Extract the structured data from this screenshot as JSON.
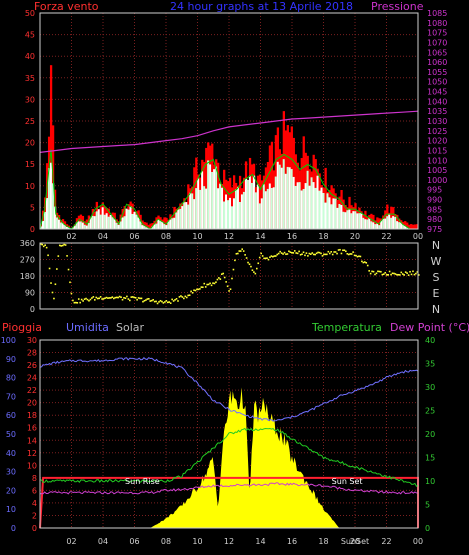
{
  "colors": {
    "background": "#000000",
    "frame": "#d0d0d0",
    "grid": "#7a1f1f",
    "wind": "#ff0000",
    "gust": "#00cc00",
    "wind_fill": "#ffffff",
    "wind_fill_light": "#c8ffd8",
    "pressure": "#cc33cc",
    "direction": "#ffff33",
    "rain": "#ff2030",
    "humidity": "#7070ff",
    "solar": "#ffff00",
    "temperature": "#22cc22",
    "dew_point": "#d040d0",
    "title": "#3333ff",
    "pressure_title": "#cc33cc",
    "axis_left_red": "#ff3030",
    "axis_blue": "#6c6cff",
    "axis_green": "#33cc33",
    "solar_label": "#bbbbbb",
    "event_label": "#ffffff"
  },
  "chart_data": [
    {
      "type": "line",
      "panel": "wind_pressure",
      "title": "24 hour graphs at 13 Aprile 2018",
      "left_axis_label": "Forza vento",
      "right_axis_label": "Pressione",
      "xlim": [
        0,
        24
      ],
      "ylim_left": [
        0,
        50
      ],
      "ylim_right": [
        975,
        1085
      ],
      "x_tick_labels": [
        "02",
        "04",
        "06",
        "08",
        "10",
        "12",
        "14",
        "16",
        "18",
        "20",
        "22",
        "00"
      ],
      "y_left_ticks": [
        "0",
        "5",
        "10",
        "15",
        "20",
        "25",
        "30",
        "35",
        "40",
        "45",
        "50"
      ],
      "y_right_ticks": [
        "975",
        "980",
        "985",
        "990",
        "995",
        "1000",
        "1005",
        "1010",
        "1015",
        "1020",
        "1025",
        "1030",
        "1035",
        "1040",
        "1045",
        "1050",
        "1055",
        "1060",
        "1065",
        "1070",
        "1075",
        "1080",
        "1085"
      ],
      "series": [
        {
          "x": [
            0,
            0.3,
            0.7,
            1,
            1.5,
            2,
            2.5,
            3,
            3.5,
            4,
            4.5,
            5,
            5.5,
            6,
            6.5,
            7,
            7.5,
            8,
            8.5,
            9,
            9.5,
            10,
            10.5,
            11,
            11.5,
            12,
            12.5,
            13,
            13.5,
            14,
            14.5,
            15,
            15.5,
            16,
            16.5,
            17,
            17.5,
            18,
            18.5,
            19,
            19.5,
            20,
            20.5,
            21,
            21.5,
            22,
            22.5,
            23,
            23.5,
            24
          ],
          "values": [
            0,
            6,
            33,
            4,
            2,
            0,
            3,
            2,
            5,
            6,
            4,
            2,
            6,
            5,
            2,
            1,
            3,
            2,
            4,
            6,
            10,
            14,
            17,
            19,
            12,
            10,
            11,
            13,
            14,
            10,
            15,
            19,
            22,
            21,
            17,
            19,
            16,
            12,
            10,
            8,
            6,
            6,
            4,
            3,
            2,
            5,
            4,
            2,
            1,
            1
          ]
        },
        {
          "x": [
            0,
            0.3,
            0.7,
            1,
            1.5,
            2,
            2.5,
            3,
            3.5,
            4,
            4.5,
            5,
            5.5,
            6,
            6.5,
            7,
            7.5,
            8,
            8.5,
            9,
            9.5,
            10,
            10.5,
            11,
            11.5,
            12,
            12.5,
            13,
            13.5,
            14,
            14.5,
            15,
            15.5,
            16,
            16.5,
            17,
            17.5,
            18,
            18.5,
            19,
            19.5,
            20,
            20.5,
            21,
            21.5,
            22,
            22.5,
            23,
            23.5,
            24
          ],
          "values": [
            0,
            4,
            16,
            3,
            1,
            0,
            2,
            1,
            4,
            5,
            3,
            1,
            5,
            4,
            1,
            0,
            2,
            1,
            3,
            5,
            7,
            10,
            13,
            14,
            9,
            7,
            8,
            10,
            11,
            8,
            11,
            14,
            15,
            14,
            12,
            13,
            12,
            9,
            7,
            6,
            4,
            4,
            3,
            2,
            1,
            3,
            3,
            1,
            0,
            0
          ]
        },
        {
          "x": [
            0,
            1,
            2,
            3,
            4,
            5,
            6,
            7,
            8,
            9,
            10,
            11,
            12,
            13,
            14,
            15,
            16,
            17,
            18,
            19,
            20,
            21,
            22,
            23,
            24
          ],
          "values": [
            1014,
            1015,
            1016,
            1016.5,
            1017,
            1017.5,
            1018,
            1019,
            1020,
            1021,
            1022.5,
            1025,
            1027,
            1028,
            1029,
            1030,
            1031,
            1031.5,
            1032,
            1032.5,
            1033,
            1033.5,
            1034,
            1034.5,
            1035
          ]
        }
      ]
    },
    {
      "type": "scatter",
      "panel": "wind_direction",
      "right_labels": [
        "N",
        "W",
        "S",
        "E",
        "N"
      ],
      "ylim": [
        0,
        360
      ],
      "y_ticks": [
        "0",
        "90",
        "180",
        "270",
        "360"
      ],
      "xlim": [
        0,
        24
      ],
      "series": [
        {
          "x": [
            0,
            0.4,
            0.8,
            1.2,
            1.6,
            2.0,
            2.6,
            3.2,
            4,
            5,
            6,
            7,
            8,
            8.6,
            9.2,
            9.8,
            10.4,
            11,
            11.6,
            12,
            12.4,
            12.8,
            13.2,
            13.6,
            14,
            14.4,
            15,
            16,
            17,
            18,
            19,
            20,
            20.6,
            21,
            22,
            23,
            24
          ],
          "values": [
            360,
            330,
            40,
            355,
            350,
            40,
            45,
            55,
            65,
            60,
            55,
            45,
            35,
            50,
            70,
            100,
            130,
            140,
            190,
            80,
            300,
            320,
            250,
            180,
            300,
            270,
            300,
            310,
            300,
            300,
            315,
            300,
            250,
            195,
            195,
            195,
            195
          ]
        }
      ]
    },
    {
      "type": "area",
      "panel": "temperature_humidity",
      "axis_labels": {
        "rain": "Pioggia",
        "humidity": "Umidita",
        "solar": "Solar",
        "temperature": "Temperatura",
        "dew_point": "Dew Point (°C)"
      },
      "events": [
        "Sun Rise",
        "Sun Set",
        "SunSet"
      ],
      "xlim": [
        0,
        24
      ],
      "x_tick_labels": [
        "02",
        "04",
        "06",
        "08",
        "10",
        "12",
        "14",
        "16",
        "18",
        "20",
        "22",
        "00"
      ],
      "ylim_humidity": [
        0,
        100
      ],
      "ylim_rain": [
        0,
        30
      ],
      "ylim_temperature": [
        0,
        40
      ],
      "humidity_ticks": [
        "0",
        "10",
        "20",
        "30",
        "40",
        "50",
        "60",
        "70",
        "80",
        "90",
        "100"
      ],
      "rain_ticks": [
        "0",
        "2",
        "4",
        "6",
        "8",
        "10",
        "12",
        "14",
        "16",
        "18",
        "20",
        "22",
        "24",
        "26",
        "28",
        "30"
      ],
      "temperature_ticks": [
        "0",
        "5",
        "10",
        "15",
        "20",
        "25",
        "30",
        "35",
        "40"
      ],
      "series": [
        {
          "name": "Umidita",
          "x": [
            0,
            1,
            2,
            3,
            4,
            5,
            6,
            7,
            8,
            9,
            10,
            11,
            12,
            13,
            14,
            15,
            16,
            17,
            18,
            19,
            20,
            21,
            22,
            23,
            24
          ],
          "values": [
            86,
            88,
            89,
            89,
            89,
            90,
            90,
            90,
            88,
            85,
            77,
            68,
            63,
            60,
            58,
            57,
            59,
            62,
            66,
            70,
            73,
            76,
            80,
            83,
            84
          ]
        },
        {
          "name": "Temperatura",
          "x": [
            0,
            1,
            2,
            3,
            4,
            5,
            6,
            7,
            8,
            9,
            10,
            11,
            12,
            13,
            14,
            15,
            16,
            17,
            18,
            19,
            20,
            21,
            22,
            23,
            24
          ],
          "values": [
            10,
            10,
            10,
            10,
            10,
            10,
            10,
            10,
            10,
            11,
            14,
            17,
            20,
            21,
            21,
            21,
            19,
            17,
            15,
            14,
            13,
            12,
            11,
            10,
            9
          ]
        },
        {
          "name": "Dew Point",
          "x": [
            0,
            1,
            2,
            3,
            4,
            5,
            6,
            7,
            8,
            9,
            10,
            11,
            12,
            13,
            14,
            15,
            16,
            17,
            18,
            19,
            20,
            21,
            22,
            23,
            24
          ],
          "values": [
            7.5,
            7.5,
            7.5,
            7.5,
            7.5,
            7.5,
            7.5,
            7.5,
            8,
            8.2,
            8.6,
            9,
            9,
            9.2,
            9.2,
            9.4,
            9.3,
            9.2,
            9,
            8.5,
            8,
            7.8,
            7.6,
            7.5,
            7.5
          ]
        },
        {
          "name": "Pioggia",
          "x": [
            0,
            0.2,
            24
          ],
          "values": [
            0,
            8,
            8
          ]
        },
        {
          "name": "Solar",
          "x": [
            0,
            6,
            7,
            8,
            9,
            10,
            10.5,
            11,
            11.3,
            11.6,
            12,
            12.3,
            12.6,
            13,
            13.3,
            13.6,
            14,
            14.3,
            14.6,
            15,
            15.5,
            16,
            17,
            18,
            19,
            24
          ],
          "values": [
            0,
            0,
            0,
            1.5,
            3.5,
            6.5,
            8.5,
            11,
            3,
            13,
            20,
            21,
            20,
            21,
            5,
            19,
            18,
            20,
            17,
            16,
            14,
            11,
            7,
            3,
            0,
            0
          ]
        }
      ]
    }
  ]
}
